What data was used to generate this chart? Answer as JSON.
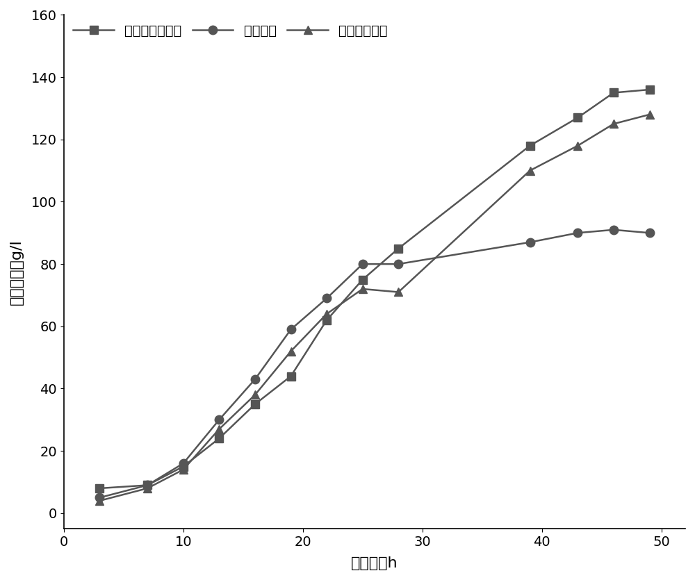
{
  "series": [
    {
      "label": "合成海绵固定化",
      "marker": "s",
      "color": "#555555",
      "x": [
        3,
        7,
        10,
        13,
        16,
        19,
        22,
        25,
        28,
        39,
        43,
        46,
        49
      ],
      "y": [
        8,
        9,
        15,
        24,
        35,
        44,
        62,
        75,
        85,
        118,
        127,
        135,
        136
      ]
    },
    {
      "label": "游离发酵",
      "marker": "o",
      "color": "#555555",
      "x": [
        3,
        7,
        10,
        13,
        16,
        19,
        22,
        25,
        28,
        39,
        43,
        46,
        49
      ],
      "y": [
        5,
        9,
        16,
        30,
        43,
        59,
        69,
        80,
        80,
        87,
        90,
        91,
        90
      ]
    },
    {
      "label": "丝瓜瓤固定化",
      "marker": "^",
      "color": "#555555",
      "x": [
        3,
        7,
        10,
        13,
        16,
        19,
        22,
        25,
        28,
        39,
        43,
        46,
        49
      ],
      "y": [
        4,
        8,
        14,
        27,
        38,
        52,
        64,
        72,
        71,
        110,
        118,
        125,
        128
      ]
    }
  ],
  "xlabel": "发酵时间h",
  "ylabel": "赖氨酸产量g/l",
  "xlim": [
    0,
    52
  ],
  "ylim": [
    -5,
    160
  ],
  "xticks": [
    0,
    10,
    20,
    30,
    40,
    50
  ],
  "yticks": [
    0,
    20,
    40,
    60,
    80,
    100,
    120,
    140,
    160
  ],
  "background_color": "#ffffff",
  "linewidth": 1.8,
  "markersize": 9,
  "legend_loc": "upper left",
  "font_size": 16,
  "axis_font_size": 15,
  "tick_font_size": 14
}
